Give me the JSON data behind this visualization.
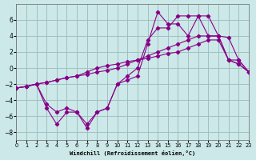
{
  "background_color": "#cce8e8",
  "grid_color": "#99bbbb",
  "line_color": "#880088",
  "xlabel": "Windchill (Refroidissement éolien,°C)",
  "xlim": [
    0,
    23
  ],
  "ylim": [
    -9,
    8
  ],
  "yticks": [
    -8,
    -6,
    -4,
    -2,
    0,
    2,
    4,
    6
  ],
  "xticks": [
    0,
    1,
    2,
    3,
    4,
    5,
    6,
    7,
    8,
    9,
    10,
    11,
    12,
    13,
    14,
    15,
    16,
    17,
    18,
    19,
    20,
    21,
    22,
    23
  ],
  "series": [
    {
      "x": [
        0,
        1,
        2,
        3,
        4,
        5,
        6,
        7,
        8,
        9,
        10,
        11,
        12,
        13,
        14,
        15,
        16,
        17,
        18,
        19,
        20,
        21,
        22,
        23
      ],
      "y": [
        -2.5,
        -2.3,
        -2.0,
        -1.8,
        -1.5,
        -1.2,
        -1.0,
        -0.8,
        -0.5,
        -0.3,
        0.0,
        0.5,
        1.0,
        1.5,
        2.0,
        2.5,
        3.0,
        3.5,
        4.0,
        4.0,
        4.0,
        1.0,
        0.5,
        -0.5
      ]
    },
    {
      "x": [
        0,
        1,
        2,
        3,
        4,
        5,
        6,
        7,
        8,
        9,
        10,
        11,
        12,
        13,
        14,
        15,
        16,
        17,
        18,
        19,
        20,
        21,
        22,
        23
      ],
      "y": [
        -2.5,
        -2.3,
        -2.0,
        -5.0,
        -7.0,
        -5.5,
        -5.5,
        -7.5,
        -5.5,
        -5.0,
        -2.0,
        -1.5,
        -1.0,
        3.0,
        7.0,
        5.5,
        5.5,
        4.0,
        6.5,
        6.5,
        4.0,
        3.8,
        1.0,
        -0.5
      ]
    },
    {
      "x": [
        0,
        1,
        2,
        3,
        4,
        5,
        6,
        7,
        8,
        9,
        10,
        11,
        12,
        13,
        14,
        15,
        16,
        17,
        18,
        19,
        20,
        21,
        22,
        23
      ],
      "y": [
        -2.5,
        -2.3,
        -2.0,
        -4.5,
        -5.5,
        -5.0,
        -5.5,
        -7.0,
        -5.5,
        -5.0,
        -2.0,
        -1.0,
        0.0,
        3.5,
        5.0,
        5.0,
        6.5,
        6.5,
        6.5,
        4.0,
        4.0,
        1.0,
        1.0,
        -0.5
      ]
    },
    {
      "x": [
        0,
        1,
        2,
        3,
        4,
        5,
        6,
        7,
        8,
        9,
        10,
        11,
        12,
        13,
        14,
        15,
        16,
        17,
        18,
        19,
        20,
        21,
        22,
        23
      ],
      "y": [
        -2.5,
        -2.3,
        -2.0,
        -1.8,
        -1.5,
        -1.2,
        -1.0,
        -0.5,
        0.0,
        0.3,
        0.5,
        0.8,
        1.0,
        1.2,
        1.5,
        1.8,
        2.0,
        2.5,
        3.0,
        3.5,
        3.5,
        1.0,
        0.5,
        -0.5
      ]
    }
  ]
}
